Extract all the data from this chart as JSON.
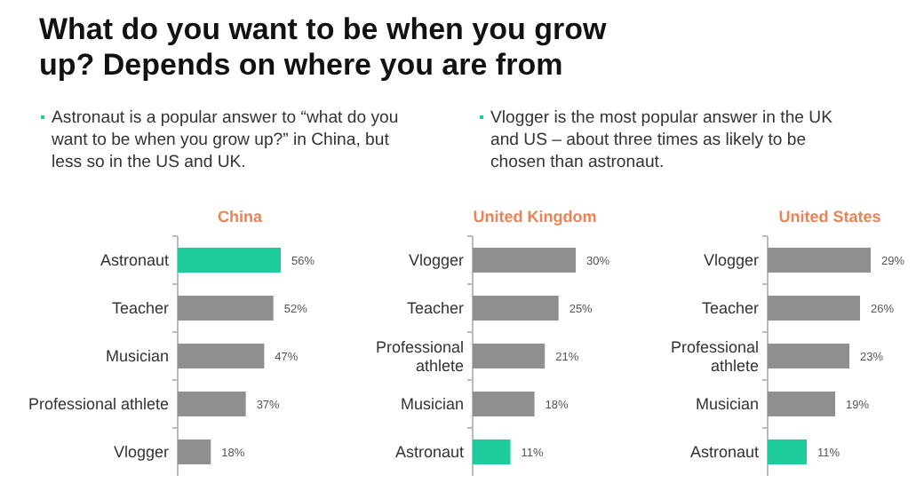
{
  "chart_data": [
    {
      "type": "other",
      "title": "What do you want to be when you grow up? Depends on where you are from",
      "annotations": [
        "Astronaut is a popular answer to “what do you want to be when you grow up?” in China, but less so in the US and UK.",
        "Vlogger is the most popular answer in the UK and US – about three times as likely to be chosen than astronaut."
      ]
    },
    {
      "type": "bar",
      "orientation": "horizontal",
      "title": "China",
      "categories": [
        "Astronaut",
        "Teacher",
        "Musician",
        "Professional athlete",
        "Vlogger"
      ],
      "values": [
        56,
        52,
        47,
        37,
        18
      ],
      "value_labels": [
        "56%",
        "52%",
        "47%",
        "37%",
        "18%"
      ],
      "colors": [
        "#1fcc9c",
        "#8f8f8f",
        "#8f8f8f",
        "#8f8f8f",
        "#8f8f8f"
      ],
      "tick_labels": "y"
    },
    {
      "type": "bar",
      "orientation": "horizontal",
      "title": "United Kingdom",
      "categories": [
        "Vlogger",
        "Teacher",
        "Professional athlete",
        "Musician",
        "Astronaut"
      ],
      "values": [
        30,
        25,
        21,
        18,
        11
      ],
      "value_labels": [
        "30%",
        "25%",
        "21%",
        "18%",
        "11%"
      ],
      "colors": [
        "#8f8f8f",
        "#8f8f8f",
        "#8f8f8f",
        "#8f8f8f",
        "#1fcc9c"
      ],
      "tick_labels": "y"
    },
    {
      "type": "bar",
      "orientation": "horizontal",
      "title": "United States",
      "categories": [
        "Vlogger",
        "Teacher",
        "Professional athlete",
        "Musician",
        "Astronaut"
      ],
      "values": [
        29,
        26,
        23,
        19,
        11
      ],
      "value_labels": [
        "29%",
        "26%",
        "23%",
        "19%",
        "11%"
      ],
      "colors": [
        "#8f8f8f",
        "#8f8f8f",
        "#8f8f8f",
        "#8f8f8f",
        "#1fcc9c"
      ],
      "tick_labels": "y"
    }
  ]
}
